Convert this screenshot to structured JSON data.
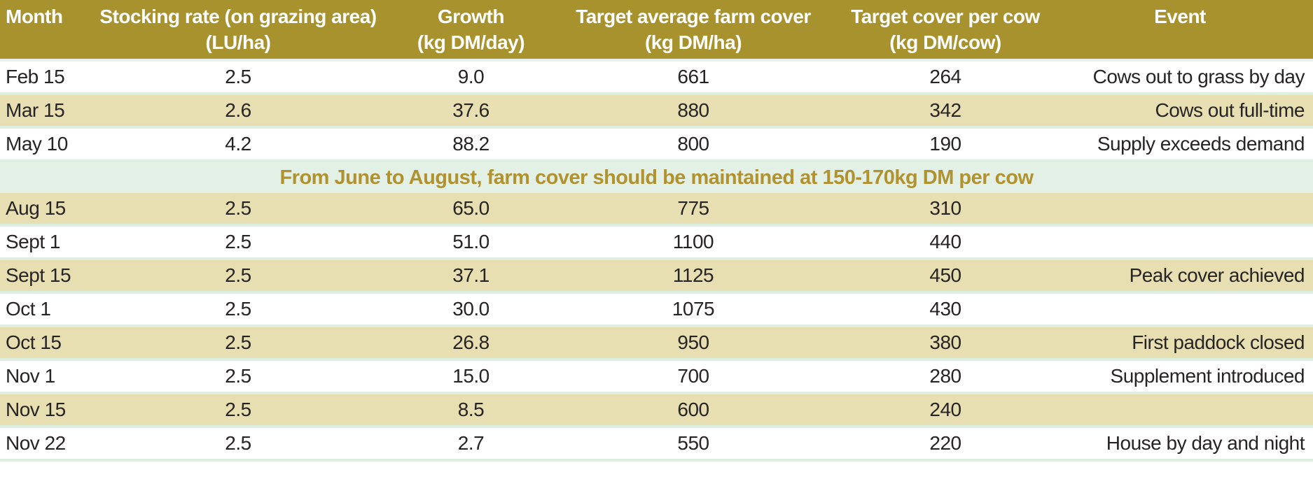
{
  "table": {
    "header": {
      "columns": [
        {
          "key": "month",
          "label": "Month",
          "unit": ""
        },
        {
          "key": "stocking_rate",
          "label": "Stocking rate (on grazing area)",
          "unit": "(LU/ha)"
        },
        {
          "key": "growth",
          "label": "Growth",
          "unit": "(kg DM/day)"
        },
        {
          "key": "farm_cover",
          "label": "Target average farm cover",
          "unit": "(kg DM/ha)"
        },
        {
          "key": "cover_per_cow",
          "label": "Target cover per cow",
          "unit": "(kg DM/cow)"
        },
        {
          "key": "event",
          "label": "Event",
          "unit": ""
        }
      ]
    },
    "rows": [
      {
        "month": "Feb 15",
        "stocking_rate": "2.5",
        "growth": "9.0",
        "farm_cover": "661",
        "cover_per_cow": "264",
        "event": "Cows out to grass by day"
      },
      {
        "month": "Mar 15",
        "stocking_rate": "2.6",
        "growth": "37.6",
        "farm_cover": "880",
        "cover_per_cow": "342",
        "event": "Cows out full-time"
      },
      {
        "month": "May 10",
        "stocking_rate": "4.2",
        "growth": "88.2",
        "farm_cover": "800",
        "cover_per_cow": "190",
        "event": "Supply exceeds demand"
      },
      {
        "month": "Aug 15",
        "stocking_rate": "2.5",
        "growth": "65.0",
        "farm_cover": "775",
        "cover_per_cow": "310",
        "event": ""
      },
      {
        "month": "Sept 1",
        "stocking_rate": "2.5",
        "growth": "51.0",
        "farm_cover": "1100",
        "cover_per_cow": "440",
        "event": ""
      },
      {
        "month": "Sept 15",
        "stocking_rate": "2.5",
        "growth": "37.1",
        "farm_cover": "1125",
        "cover_per_cow": "450",
        "event": "Peak cover achieved"
      },
      {
        "month": "Oct 1",
        "stocking_rate": "2.5",
        "growth": "30.0",
        "farm_cover": "1075",
        "cover_per_cow": "430",
        "event": ""
      },
      {
        "month": "Oct 15",
        "stocking_rate": "2.5",
        "growth": "26.8",
        "farm_cover": "950",
        "cover_per_cow": "380",
        "event": "First paddock closed"
      },
      {
        "month": "Nov 1",
        "stocking_rate": "2.5",
        "growth": "15.0",
        "farm_cover": "700",
        "cover_per_cow": "280",
        "event": "Supplement introduced"
      },
      {
        "month": "Nov 15",
        "stocking_rate": "2.5",
        "growth": "8.5",
        "farm_cover": "600",
        "cover_per_cow": "240",
        "event": ""
      },
      {
        "month": "Nov 22",
        "stocking_rate": "2.5",
        "growth": "2.7",
        "farm_cover": "550",
        "cover_per_cow": "220",
        "event": "House by day and night"
      }
    ],
    "note": {
      "text": "From June to August, farm cover should be maintained at 150-170kg DM per cow",
      "after_row_index": 2
    }
  },
  "colors": {
    "header_bg": "#a8922d",
    "header_text": "#ffffff",
    "row_bg": "#ffffff",
    "row_alt_bg": "#e7deb1",
    "row_separator": "#dfeee3",
    "note_bg": "#e3f0e6",
    "note_text": "#b0922f",
    "body_text": "#272425"
  }
}
